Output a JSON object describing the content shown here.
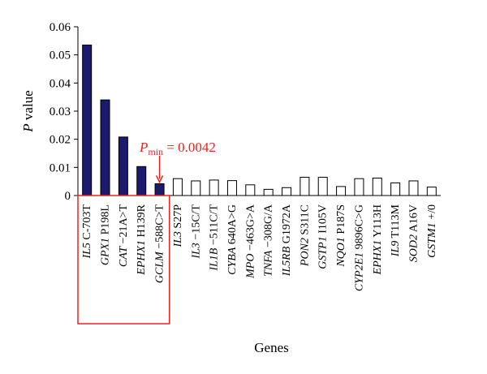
{
  "chart_data": {
    "type": "bar",
    "title": "",
    "xlabel": "Genes",
    "ylabel": "P value",
    "ylabel_italic_part": "P",
    "ylabel_rest": " value",
    "ylim": [
      0,
      0.06
    ],
    "yticks": [
      "0",
      "0.01",
      "0.02",
      "0.03",
      "0.04",
      "0.05",
      "0.06"
    ],
    "grid": false,
    "categories": [
      {
        "gene": "IL5",
        "variant": " C-703T"
      },
      {
        "gene": "GPX1",
        "variant": " P198L"
      },
      {
        "gene": "CAT",
        "variant": " −21A>T"
      },
      {
        "gene": "EPHX1",
        "variant": " H139R"
      },
      {
        "gene": "GCLM",
        "variant": " −588C>T"
      },
      {
        "gene": "IL3",
        "variant": " S27P"
      },
      {
        "gene": "IL3",
        "variant": " −15C/T"
      },
      {
        "gene": "IL1B",
        "variant": " −511C/T"
      },
      {
        "gene": "CYBA",
        "variant": " 640A>G"
      },
      {
        "gene": "MPO",
        "variant": " −463G>A"
      },
      {
        "gene": "TNFA",
        "variant": " −308G/A"
      },
      {
        "gene": "IL5RB",
        "variant": " G1972A"
      },
      {
        "gene": "PON2",
        "variant": " S311C"
      },
      {
        "gene": "GSTP1",
        "variant": " I105V"
      },
      {
        "gene": "NQO1",
        "variant": " P187S"
      },
      {
        "gene": "CYP2E1",
        "variant": " 9896C>G"
      },
      {
        "gene": "EPHX1",
        "variant": " Y113H"
      },
      {
        "gene": "IL9",
        "variant": " T113M"
      },
      {
        "gene": "SOD2",
        "variant": " A16V"
      },
      {
        "gene": "GSTM1",
        "variant": " +/0"
      }
    ],
    "values": [
      0.0535,
      0.034,
      0.0208,
      0.0103,
      0.0042,
      0.006,
      0.0052,
      0.0055,
      0.0053,
      0.0038,
      0.0022,
      0.0028,
      0.0065,
      0.0065,
      0.0032,
      0.006,
      0.0062,
      0.0045,
      0.0052,
      0.003
    ],
    "fill_first_n": 5,
    "colors": {
      "filled_bar": "#1a1a6e",
      "open_bar": "#ffffff",
      "bar_stroke": "#000000",
      "annotation": "#e8231c"
    },
    "annotation": {
      "symbol": "P",
      "subscript": "min",
      "text": " = 0.0042",
      "target_index": 4,
      "highlight_box_first_n": 5
    }
  }
}
